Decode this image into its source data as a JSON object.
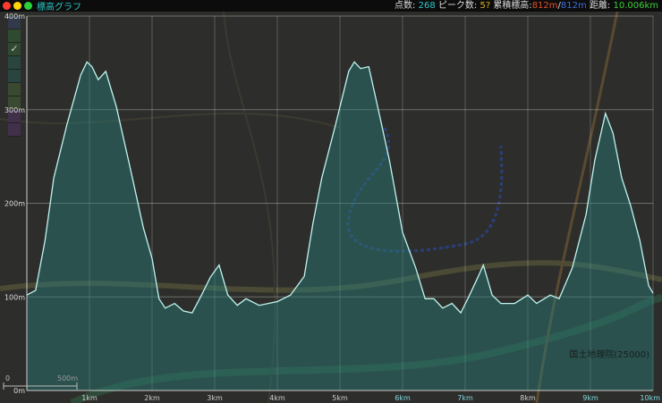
{
  "window": {
    "title": "標高グラフ",
    "buttons": [
      "close",
      "minimize",
      "maximize"
    ]
  },
  "stats": {
    "points_label": "点数:",
    "points": "268",
    "peaks_label": "ピーク数:",
    "peaks": "5?",
    "cumulative_label": "累積標高:",
    "ascent": "812m",
    "sep": "/",
    "descent": "812m",
    "distance_label": "距離:",
    "distance": "10.006km"
  },
  "colors": {
    "ascent": "#e05030",
    "descent": "#3a6fe0",
    "distance": "#3ccf3c",
    "points": "#2bc7c7",
    "peaks": "#e0b020",
    "line": "#bff5f0",
    "fill": "#2a7d7a"
  },
  "map": {
    "attribution": "国土地理院(25000)",
    "scale_zero": "0",
    "scale_label": "500m"
  },
  "chart_data": {
    "type": "area",
    "xlabel": "",
    "ylabel": "",
    "xlim": [
      0,
      10
    ],
    "ylim": [
      0,
      400
    ],
    "grid": true,
    "x_ticks": [
      "1km",
      "2km",
      "3km",
      "4km",
      "5km",
      "6km",
      "7km",
      "8km",
      "9km",
      "10km"
    ],
    "y_ticks": [
      "0m",
      "100m",
      "200m",
      "300m",
      "400m"
    ],
    "x": [
      0,
      0.14,
      0.29,
      0.43,
      0.64,
      0.86,
      0.96,
      1.04,
      1.14,
      1.26,
      1.43,
      1.64,
      1.86,
      2.0,
      2.11,
      2.21,
      2.36,
      2.5,
      2.64,
      2.79,
      2.93,
      3.07,
      3.21,
      3.36,
      3.5,
      3.71,
      4.0,
      4.21,
      4.43,
      4.57,
      4.71,
      4.93,
      5.14,
      5.23,
      5.33,
      5.46,
      5.57,
      5.79,
      6.0,
      6.21,
      6.36,
      6.5,
      6.64,
      6.79,
      6.93,
      7.07,
      7.21,
      7.29,
      7.43,
      7.57,
      7.79,
      8.0,
      8.14,
      8.36,
      8.5,
      8.71,
      8.93,
      9.07,
      9.24,
      9.36,
      9.5,
      9.64,
      9.79,
      9.93,
      10.0
    ],
    "y": [
      102,
      107,
      160,
      227,
      284,
      337,
      351,
      346,
      332,
      341,
      303,
      241,
      174,
      141,
      98,
      88,
      93,
      85,
      83,
      102,
      121,
      134,
      102,
      91,
      98,
      91,
      95,
      102,
      122,
      179,
      227,
      284,
      341,
      351,
      344,
      346,
      313,
      246,
      169,
      131,
      98,
      98,
      88,
      93,
      83,
      102,
      122,
      134,
      102,
      93,
      93,
      102,
      93,
      102,
      98,
      131,
      188,
      246,
      296,
      275,
      227,
      198,
      160,
      112,
      104
    ]
  }
}
